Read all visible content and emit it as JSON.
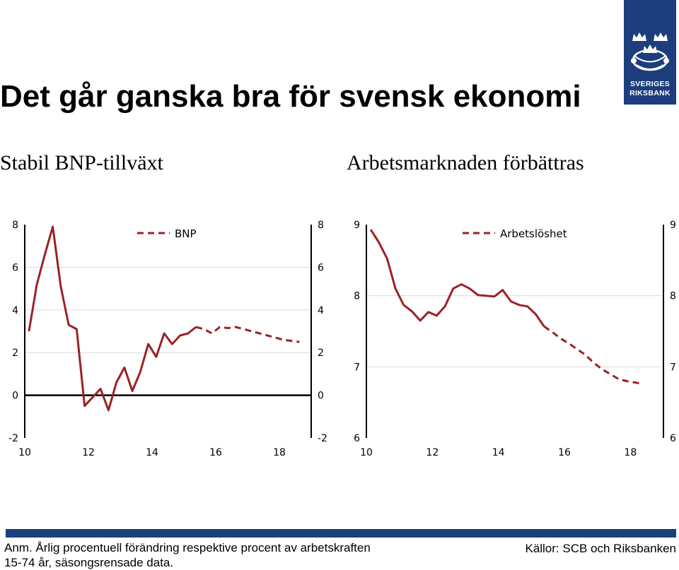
{
  "title": "Det går ganska bra för svensk ekonomi",
  "logo": {
    "line1": "SVERIGES",
    "line2": "RIKSBANK"
  },
  "colors": {
    "series": "#9b2226",
    "grid": "#d9d9d9",
    "brand": "#1d3e7c"
  },
  "chart_data": [
    {
      "type": "line",
      "subtitle": "Stabil BNP-tillväxt",
      "legend": "BNP",
      "legend_position": "top-center",
      "xlim": [
        10,
        19
      ],
      "ylim": [
        -2,
        8
      ],
      "x_ticks": [
        "10",
        "12",
        "14",
        "16",
        "18"
      ],
      "y_ticks_left": [
        "8",
        "6",
        "4",
        "2",
        "0",
        "-2"
      ],
      "y_ticks_right": [
        "8",
        "6",
        "4",
        "2",
        "0",
        "-2"
      ],
      "grid": true,
      "zero_line": true,
      "series": [
        {
          "style": "solid",
          "points": [
            [
              10.13,
              3.0
            ],
            [
              10.38,
              5.2
            ],
            [
              10.63,
              6.6
            ],
            [
              10.88,
              7.9
            ],
            [
              11.13,
              5.1
            ],
            [
              11.38,
              3.3
            ],
            [
              11.63,
              3.1
            ],
            [
              11.88,
              -0.5
            ],
            [
              12.13,
              -0.1
            ],
            [
              12.38,
              0.3
            ],
            [
              12.63,
              -0.7
            ],
            [
              12.88,
              0.6
            ],
            [
              13.13,
              1.3
            ],
            [
              13.38,
              0.2
            ],
            [
              13.63,
              1.1
            ],
            [
              13.88,
              2.4
            ],
            [
              14.13,
              1.8
            ],
            [
              14.38,
              2.9
            ],
            [
              14.63,
              2.4
            ],
            [
              14.88,
              2.8
            ],
            [
              15.13,
              2.9
            ],
            [
              15.38,
              3.2
            ]
          ]
        },
        {
          "style": "dashed",
          "points": [
            [
              15.38,
              3.2
            ],
            [
              15.63,
              3.1
            ],
            [
              15.88,
              2.9
            ],
            [
              16.13,
              3.2
            ],
            [
              16.38,
              3.15
            ],
            [
              16.63,
              3.2
            ],
            [
              16.88,
              3.1
            ],
            [
              17.13,
              3.0
            ],
            [
              17.38,
              2.9
            ],
            [
              17.63,
              2.8
            ],
            [
              17.88,
              2.7
            ],
            [
              18.13,
              2.6
            ],
            [
              18.38,
              2.55
            ],
            [
              18.63,
              2.5
            ]
          ]
        }
      ]
    },
    {
      "type": "line",
      "subtitle": "Arbetsmarknaden förbättras",
      "legend": "Arbetslöshet",
      "legend_position": "top-center",
      "xlim": [
        10,
        19
      ],
      "ylim": [
        6,
        9
      ],
      "x_ticks": [
        "10",
        "12",
        "14",
        "16",
        "18"
      ],
      "y_ticks_left": [
        "9",
        "8",
        "7",
        "6"
      ],
      "y_ticks_right": [
        "9",
        "8",
        "7",
        "6"
      ],
      "grid": true,
      "zero_line": false,
      "series": [
        {
          "style": "solid",
          "points": [
            [
              10.13,
              8.93
            ],
            [
              10.38,
              8.75
            ],
            [
              10.63,
              8.52
            ],
            [
              10.88,
              8.1
            ],
            [
              11.13,
              7.87
            ],
            [
              11.38,
              7.78
            ],
            [
              11.63,
              7.65
            ],
            [
              11.88,
              7.77
            ],
            [
              12.13,
              7.72
            ],
            [
              12.38,
              7.85
            ],
            [
              12.63,
              8.1
            ],
            [
              12.88,
              8.16
            ],
            [
              13.13,
              8.1
            ],
            [
              13.38,
              8.01
            ],
            [
              13.63,
              8.0
            ],
            [
              13.88,
              7.99
            ],
            [
              14.13,
              8.08
            ],
            [
              14.38,
              7.92
            ],
            [
              14.63,
              7.87
            ],
            [
              14.88,
              7.85
            ],
            [
              15.13,
              7.74
            ],
            [
              15.38,
              7.57
            ]
          ]
        },
        {
          "style": "dashed",
          "points": [
            [
              15.38,
              7.57
            ],
            [
              15.63,
              7.49
            ],
            [
              15.88,
              7.4
            ],
            [
              16.13,
              7.33
            ],
            [
              16.38,
              7.25
            ],
            [
              16.63,
              7.17
            ],
            [
              16.88,
              7.06
            ],
            [
              17.13,
              6.97
            ],
            [
              17.38,
              6.9
            ],
            [
              17.63,
              6.83
            ],
            [
              17.88,
              6.8
            ],
            [
              18.13,
              6.78
            ],
            [
              18.38,
              6.76
            ]
          ]
        }
      ]
    }
  ],
  "footer": {
    "note_line1": "Anm. Årlig procentuell förändring respektive procent av arbetskraften",
    "note_line2": "15-74 år, säsongsrensade data.",
    "sources": "Källor: SCB och Riksbanken"
  }
}
